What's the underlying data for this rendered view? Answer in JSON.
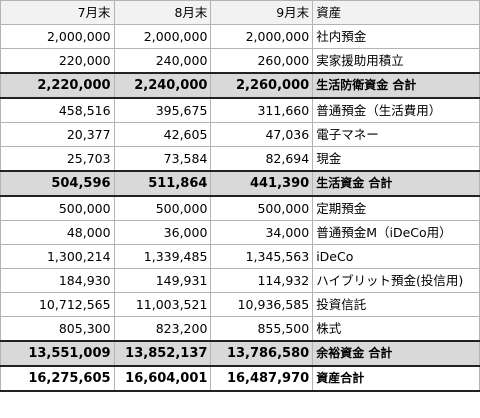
{
  "headers": [
    "7月末",
    "8月末",
    "9月末",
    "資産"
  ],
  "rows": [
    {
      "v": [
        "2,000,000",
        "2,000,000",
        "2,000,000"
      ],
      "label": "社内預金",
      "type": "normal"
    },
    {
      "v": [
        "220,000",
        "240,000",
        "260,000"
      ],
      "label": "実家援助用積立",
      "type": "normal"
    },
    {
      "v": [
        "2,220,000",
        "2,240,000",
        "2,260,000"
      ],
      "label": "生活防衛資金 合計",
      "type": "total"
    },
    {
      "v": [
        "458,516",
        "395,675",
        "311,660"
      ],
      "label": "普通預金（生活費用）",
      "type": "normal"
    },
    {
      "v": [
        "20,377",
        "42,605",
        "47,036"
      ],
      "label": "電子マネー",
      "type": "normal"
    },
    {
      "v": [
        "25,703",
        "73,584",
        "82,694"
      ],
      "label": "現金",
      "type": "normal"
    },
    {
      "v": [
        "504,596",
        "511,864",
        "441,390"
      ],
      "label": "生活資金 合計",
      "type": "total"
    },
    {
      "v": [
        "500,000",
        "500,000",
        "500,000"
      ],
      "label": "定期預金",
      "type": "normal"
    },
    {
      "v": [
        "48,000",
        "36,000",
        "34,000"
      ],
      "label": "普通預金M（iDeCo用）",
      "type": "normal"
    },
    {
      "v": [
        "1,300,214",
        "1,339,485",
        "1,345,563"
      ],
      "label": "iDeCo",
      "type": "normal"
    },
    {
      "v": [
        "184,930",
        "149,931",
        "114,932"
      ],
      "label": "ハイブリット預金(投信用)",
      "type": "normal"
    },
    {
      "v": [
        "10,712,565",
        "11,003,521",
        "10,936,585"
      ],
      "label": "投資信託",
      "type": "normal"
    },
    {
      "v": [
        "805,300",
        "823,200",
        "855,500"
      ],
      "label": "株式",
      "type": "normal"
    },
    {
      "v": [
        "13,551,009",
        "13,852,137",
        "13,786,580"
      ],
      "label": "余裕資金 合計",
      "type": "total"
    },
    {
      "v": [
        "16,275,605",
        "16,604,001",
        "16,487,970"
      ],
      "label": "資産合計",
      "type": "grand"
    }
  ]
}
